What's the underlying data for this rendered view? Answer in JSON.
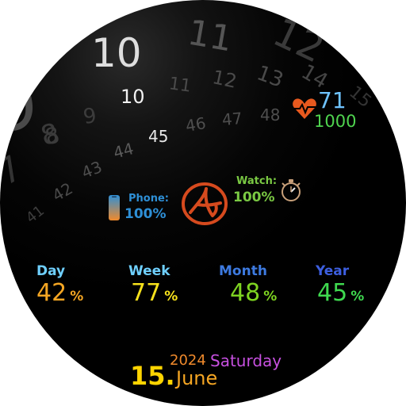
{
  "dial": {
    "hour_big": "10",
    "hour_small": "10",
    "minute": "45",
    "hour_ring": [
      "8",
      "9",
      "10",
      "11",
      "12",
      "1"
    ],
    "inner_ring": [
      "11",
      "12",
      "13",
      "14",
      "15"
    ],
    "minute_ring_upper": [
      "46",
      "47",
      "48"
    ],
    "minute_ring_lower": [
      "44",
      "43",
      "42",
      "41"
    ]
  },
  "health": {
    "heart_rate": "71",
    "steps": "1000",
    "heart_icon": "heart-pulse-icon",
    "heart_color": "#e8591e",
    "heart_rate_color": "#6fc3ff",
    "steps_color": "#4fd44f"
  },
  "battery": {
    "phone_label": "Phone:",
    "phone_value": "100%",
    "watch_label": "Watch:",
    "watch_value": "100%",
    "phone_color": "#2e8fd6",
    "watch_color": "#7ac943"
  },
  "stats": [
    {
      "label": "Day",
      "value": "42",
      "unit": "%",
      "label_color": "#6fd0ff",
      "value_color": "#f5a623"
    },
    {
      "label": "Week",
      "value": "77",
      "unit": "%",
      "label_color": "#6fd0ff",
      "value_color": "#f7e21c"
    },
    {
      "label": "Month",
      "value": "48",
      "unit": "%",
      "label_color": "#3d7ae0",
      "value_color": "#7ed321"
    },
    {
      "label": "Year",
      "value": "45",
      "unit": "%",
      "label_color": "#3d5fe0",
      "value_color": "#3fd94f"
    }
  ],
  "date": {
    "year": "2024",
    "weekday": "Saturday",
    "day": "15.",
    "month": "June",
    "year_color": "#f08a2c",
    "weekday_color": "#c750e0",
    "day_color": "#ffd400",
    "month_color": "#f5a623"
  }
}
